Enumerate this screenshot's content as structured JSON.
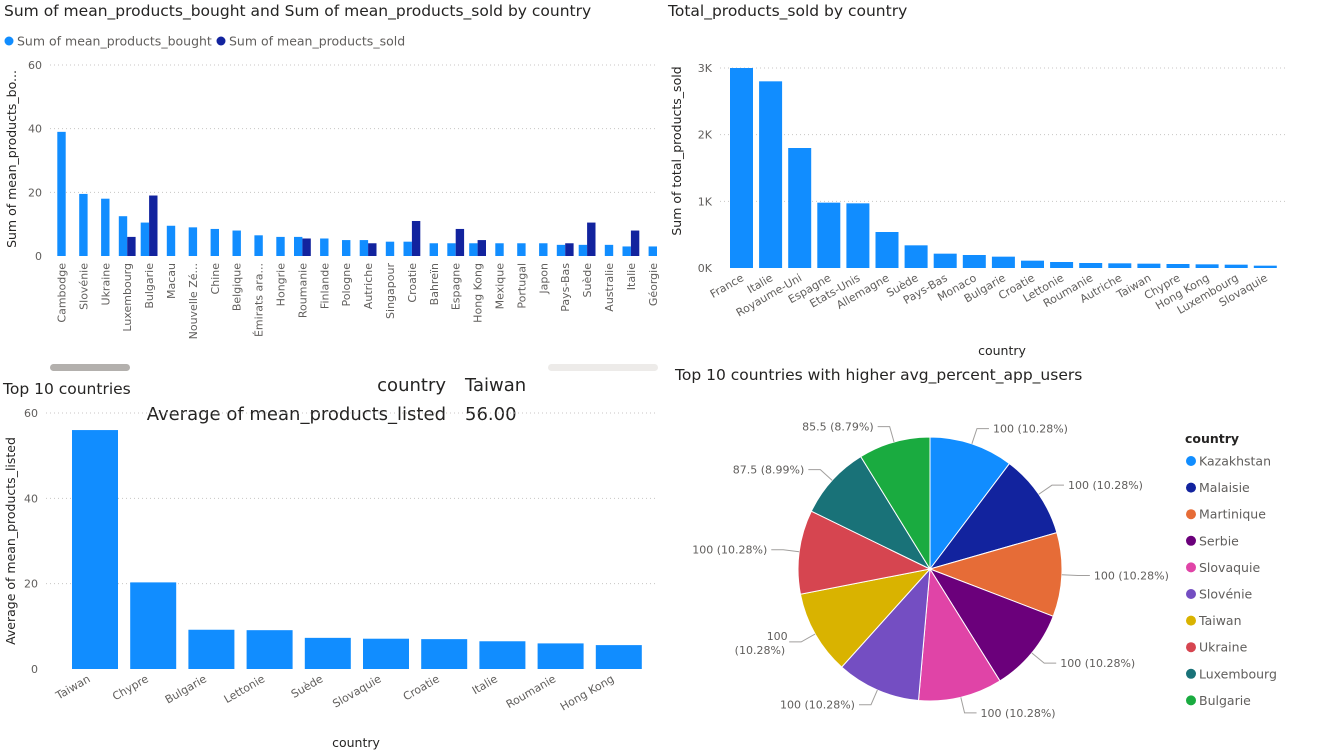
{
  "colors": {
    "bought": "#118DFF",
    "sold": "#12239E",
    "blue": "#118DFF"
  },
  "chart_data": [
    {
      "type": "bar",
      "title": "Sum of mean_products_bought and Sum of mean_products_sold by country",
      "ylabel": "Sum of mean_products_bo...",
      "ylim": [
        0,
        60
      ],
      "yticks": [
        0,
        20,
        40,
        60
      ],
      "legend_position": "top-left",
      "categories": [
        "Cambodge",
        "Slovénie",
        "Ukraine",
        "Luxembourg",
        "Bulgarie",
        "Macau",
        "Nouvelle Zé...",
        "Chine",
        "Belgique",
        "Émirats ara...",
        "Hongrie",
        "Roumanie",
        "Finlande",
        "Pologne",
        "Autriche",
        "Singapour",
        "Croatie",
        "Bahreïn",
        "Espagne",
        "Hong Kong",
        "Mexique",
        "Portugal",
        "Japon",
        "Pays-Bas",
        "Suède",
        "Australie",
        "Italie",
        "Géorgie"
      ],
      "series": [
        {
          "name": "Sum of mean_products_bought",
          "values": [
            39,
            19.5,
            18,
            12.5,
            10.5,
            9.5,
            9,
            8.5,
            8,
            6.5,
            6,
            6,
            5.5,
            5,
            5,
            4.5,
            4.5,
            4,
            4,
            4,
            4,
            4,
            4,
            3.5,
            3.5,
            3.5,
            3,
            3
          ]
        },
        {
          "name": "Sum of mean_products_sold",
          "values": [
            0,
            0,
            0,
            6,
            19,
            0,
            0,
            0,
            0,
            0,
            0,
            5.5,
            0,
            0,
            4,
            0,
            11,
            0,
            8.5,
            5,
            0,
            0,
            0,
            4,
            10.5,
            0,
            8,
            0
          ]
        }
      ]
    },
    {
      "type": "bar",
      "title": "Total_products_sold by country",
      "xlabel": "country",
      "ylabel": "Sum of total_products_sold",
      "ylim": [
        0,
        3000
      ],
      "yticks": [
        0,
        1000,
        2000,
        3000
      ],
      "ytick_labels": [
        "0K",
        "1K",
        "2K",
        "3K"
      ],
      "categories": [
        "France",
        "Italie",
        "Royaume-Uni",
        "Espagne",
        "Etats-Unis",
        "Allemagne",
        "Suède",
        "Pays-Bas",
        "Monaco",
        "Bulgarie",
        "Croatie",
        "Lettonie",
        "Roumanie",
        "Autriche",
        "Taiwan",
        "Chypre",
        "Hong Kong",
        "Luxembourg",
        "Slovaquie"
      ],
      "values": [
        3000,
        2800,
        1800,
        980,
        970,
        540,
        340,
        215,
        195,
        170,
        110,
        90,
        75,
        70,
        65,
        60,
        55,
        50,
        35
      ]
    },
    {
      "type": "bar",
      "title": "Top 10 countries",
      "xlabel": "country",
      "ylabel": "Average of mean_products_listed",
      "ylim": [
        0,
        60
      ],
      "yticks": [
        0,
        20,
        40,
        60
      ],
      "categories": [
        "Taiwan",
        "Chypre",
        "Bulgarie",
        "Lettonie",
        "Suède",
        "Slovaquie",
        "Croatie",
        "Italie",
        "Roumanie",
        "Hong Kong"
      ],
      "values": [
        56,
        20.3,
        9.2,
        9.1,
        7.3,
        7.1,
        7.0,
        6.5,
        6.0,
        5.6
      ],
      "tooltip": {
        "key1": "country",
        "val1": "Taiwan",
        "key2": "Average of mean_products_listed",
        "val2": "56.00"
      }
    },
    {
      "type": "pie",
      "title": "Top 10 countries with higher avg_percent_app_users",
      "legend_title": "country",
      "legend_position": "right",
      "slices": [
        {
          "label": "Kazakhstan",
          "value": 100,
          "text": "100 (10.28%)",
          "color": "#118DFF"
        },
        {
          "label": "Malaisie",
          "value": 100,
          "text": "100 (10.28%)",
          "color": "#12239E"
        },
        {
          "label": "Martinique",
          "value": 100,
          "text": "100 (10.28%)",
          "color": "#E66C37"
        },
        {
          "label": "Serbie",
          "value": 100,
          "text": "100 (10.28%)",
          "color": "#6B007B"
        },
        {
          "label": "Slovaquie",
          "value": 100,
          "text": "100 (10.28%)",
          "color": "#E044A7"
        },
        {
          "label": "Slovénie",
          "value": 100,
          "text": "100 (10.28%)",
          "color": "#744EC2"
        },
        {
          "label": "Taiwan",
          "value": 100,
          "text": "100 (10.28%)",
          "color": "#D9B300"
        },
        {
          "label": "Ukraine",
          "value": 100,
          "text": "100 (10.28%)",
          "color": "#D64550"
        },
        {
          "label": "Luxembourg",
          "value": 87.5,
          "text": "87.5 (8.99%)",
          "color": "#197278"
        },
        {
          "label": "Bulgarie",
          "value": 85.5,
          "text": "85.5 (8.79%)",
          "color": "#1AAB40"
        }
      ]
    }
  ]
}
